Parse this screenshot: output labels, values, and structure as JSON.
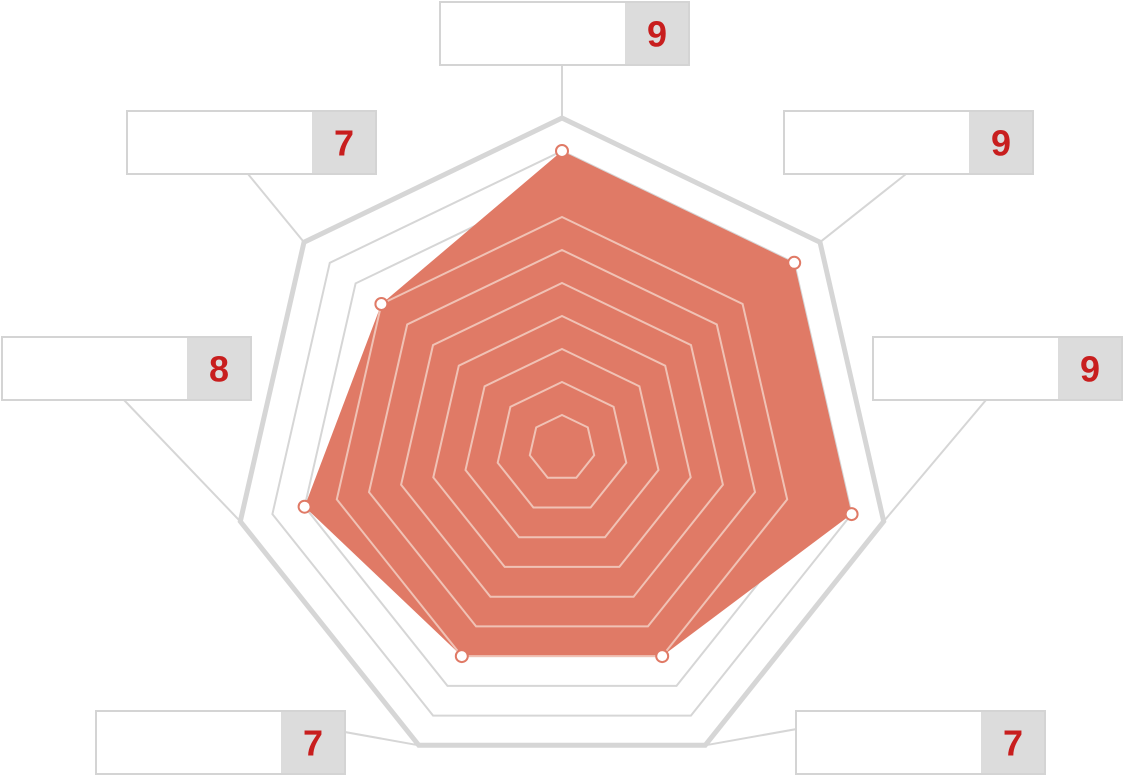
{
  "chart_data": {
    "type": "radar",
    "categories": [
      "",
      "",
      "",
      "",
      "",
      "",
      ""
    ],
    "values": [
      9,
      9,
      9,
      7,
      7,
      8,
      7
    ],
    "value_labels": [
      "9",
      "9",
      "9",
      "7",
      "7",
      "8",
      "7"
    ],
    "max": 10,
    "grid_levels": 10,
    "colors": {
      "fill": "#e07a66",
      "inner_grid": "#f0c2b5",
      "outer_grid": "#d6d6d6",
      "value_text": "#c81e1e",
      "value_box": "#dcdcdc"
    }
  }
}
